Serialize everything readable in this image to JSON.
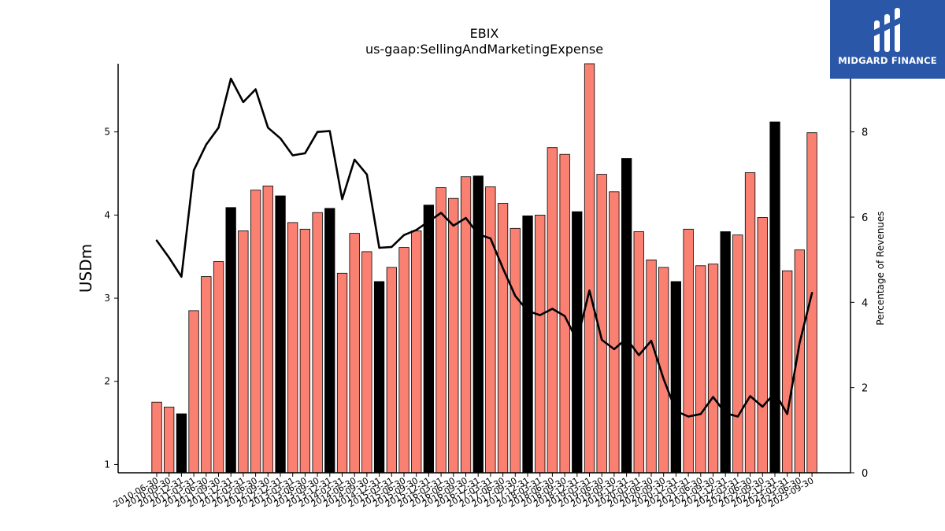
{
  "header": {
    "title": "EBIX",
    "subtitle": "us-gaap:SellingAndMarketingExpense"
  },
  "logo": {
    "text": "MIDGARD FINANCE",
    "background": "#2b57a8"
  },
  "chart_data": {
    "type": "bar",
    "title": "EBIX",
    "subtitle": "us-gaap:SellingAndMarketingExpense",
    "ylabel": "USDm",
    "y2label": "Percentage of Revenues",
    "ylim": [
      0.9,
      5.82
    ],
    "y2lim": [
      0,
      9.6
    ],
    "yticks": [
      1,
      2,
      3,
      4,
      5
    ],
    "y2ticks": [
      0,
      2,
      4,
      6,
      8
    ],
    "colors": {
      "bar": "#fa8072",
      "bar_highlight": "#000000",
      "line": "#000000"
    },
    "categories": [
      "2010-06-30",
      "2010-09-30",
      "2010-12-31",
      "2011-03-31",
      "2011-06-30",
      "2011-09-30",
      "2011-12-31",
      "2012-03-31",
      "2012-06-30",
      "2012-09-30",
      "2012-12-31",
      "2013-03-31",
      "2013-06-30",
      "2013-09-30",
      "2013-12-31",
      "2014-03-31",
      "2014-06-30",
      "2014-09-30",
      "2014-12-31",
      "2015-03-31",
      "2015-06-30",
      "2015-09-30",
      "2015-12-31",
      "2016-03-31",
      "2016-06-30",
      "2016-09-30",
      "2016-12-31",
      "2017-03-31",
      "2017-06-30",
      "2017-09-30",
      "2017-12-31",
      "2018-03-31",
      "2018-06-30",
      "2018-09-30",
      "2018-12-31",
      "2019-03-31",
      "2019-06-30",
      "2019-09-30",
      "2019-12-31",
      "2020-03-31",
      "2020-06-30",
      "2020-09-30",
      "2020-12-31",
      "2021-03-31",
      "2021-06-30",
      "2021-09-30",
      "2021-12-31",
      "2022-03-31",
      "2022-06-30",
      "2022-09-30",
      "2022-12-31",
      "2023-03-31",
      "2023-06-30",
      "2023-09-30"
    ],
    "x_tick_labels": [
      "2010-06-30",
      "2010-09-30",
      "2010-12-31",
      "2011-03-31",
      "2011-06-30",
      "2011-09-30",
      "2011-12-31",
      "2012-03-31",
      "2012-06-30",
      "2012-09-30",
      "2012-12-31",
      "2013-03-31",
      "2013-06-30",
      "2013-09-30",
      "2013-12-31",
      "2014-03-31",
      "2014-06-30",
      "2014-09-30",
      "2014-12-31",
      "2015-03-31",
      "2015-06-30",
      "2015-09-30",
      "2015-12-31",
      "2016-03-31",
      "2016-06-30",
      "2016-09-30",
      "2016-12-31",
      "2017-03-31",
      "2017-06-30",
      "2017-09-30",
      "2017-12-31",
      "2018-03-31",
      "2018-06-30",
      "2018-09-30",
      "2018-12-31",
      "2019-03-31",
      "2019-06-30",
      "2019-09-30",
      "2019-12-31",
      "2020-03-31",
      "2020-06-30",
      "2020-09-30",
      "2020-12-31",
      "2021-03-31",
      "2021-06-30",
      "2021-09-30",
      "2021-12-31",
      "2022-03-31",
      "2022-06-30",
      "2022-09-30",
      "2022-12-31",
      "2023-03-31",
      "2023-06-30",
      "2023-09-30"
    ],
    "values": [
      1.75,
      1.69,
      1.61,
      2.85,
      3.26,
      3.44,
      4.09,
      3.81,
      4.3,
      4.35,
      4.23,
      3.91,
      3.83,
      4.03,
      4.08,
      3.3,
      3.78,
      3.56,
      3.2,
      3.37,
      3.61,
      3.81,
      4.12,
      4.33,
      4.2,
      4.46,
      4.47,
      4.34,
      4.14,
      3.84,
      3.99,
      4.0,
      4.81,
      4.73,
      4.04,
      5.82,
      4.49,
      4.28,
      4.68,
      3.8,
      3.46,
      3.37,
      3.2,
      3.83,
      3.39,
      3.41,
      3.8,
      3.76,
      4.51,
      3.97,
      5.12,
      3.33,
      3.58,
      4.99
    ],
    "highlight": [
      false,
      false,
      true,
      false,
      false,
      false,
      true,
      false,
      false,
      false,
      true,
      false,
      false,
      false,
      true,
      false,
      false,
      false,
      true,
      false,
      false,
      false,
      true,
      false,
      false,
      false,
      true,
      false,
      false,
      false,
      true,
      false,
      false,
      false,
      true,
      false,
      false,
      false,
      true,
      false,
      false,
      false,
      true,
      false,
      false,
      false,
      true,
      false,
      false,
      false,
      true,
      false,
      false,
      false
    ],
    "percentage_of_revenues": [
      5.45,
      5.05,
      4.6,
      7.1,
      7.7,
      8.1,
      9.25,
      8.7,
      9.0,
      8.1,
      7.85,
      7.45,
      7.5,
      8.0,
      8.02,
      6.42,
      7.35,
      7.0,
      5.28,
      5.3,
      5.58,
      5.7,
      5.9,
      6.1,
      5.8,
      5.98,
      5.6,
      5.5,
      4.8,
      4.15,
      3.8,
      3.7,
      3.85,
      3.68,
      3.1,
      4.28,
      3.12,
      2.9,
      3.15,
      2.76,
      3.1,
      2.2,
      1.45,
      1.32,
      1.38,
      1.78,
      1.4,
      1.32,
      1.8,
      1.55,
      1.88,
      1.38,
      3.05,
      4.22
    ]
  }
}
